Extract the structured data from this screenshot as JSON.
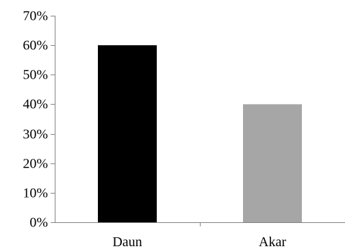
{
  "chart_data": {
    "type": "bar",
    "title": "",
    "xlabel": "",
    "ylabel": "",
    "categories": [
      "Daun",
      "Akar"
    ],
    "values": [
      0.6,
      0.4
    ],
    "colors": [
      "#000000",
      "#a6a6a6"
    ],
    "ylim": [
      0,
      0.7
    ],
    "y_ticks": [
      0,
      0.1,
      0.2,
      0.3,
      0.4,
      0.5,
      0.6,
      0.7
    ],
    "y_tick_labels": [
      "0%",
      "10%",
      "20%",
      "30%",
      "40%",
      "50%",
      "60%",
      "70%"
    ],
    "grid": false,
    "legend": "none"
  }
}
